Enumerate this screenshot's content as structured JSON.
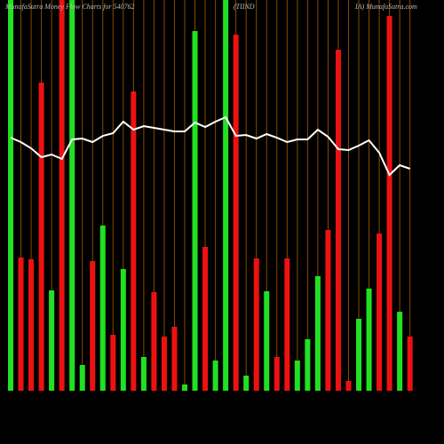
{
  "chart_data": {
    "type": "bar",
    "title_parts": [
      "MunafaSutra  Money Flow  Charts for 540762",
      "(TIIND",
      "IA) MunafaSutra.com"
    ],
    "values": [
      440,
      150,
      148,
      347,
      113,
      440,
      440,
      29,
      146,
      186,
      63,
      137,
      337,
      38,
      111,
      61,
      72,
      7,
      405,
      162,
      34,
      440,
      401,
      17,
      149,
      112,
      38,
      149,
      34,
      58,
      129,
      181,
      384,
      11,
      81,
      115,
      177,
      422,
      89,
      61
    ],
    "colors": [
      "#22e022",
      "#ee1111",
      "#ee1111",
      "#ee1111",
      "#22e022",
      "#ee1111",
      "#22e022",
      "#22e022",
      "#ee1111",
      "#22e022",
      "#ee1111",
      "#22e022",
      "#ee1111",
      "#22e022",
      "#ee1111",
      "#ee1111",
      "#ee1111",
      "#22e022",
      "#22e022",
      "#ee1111",
      "#22e022",
      "#22e022",
      "#ee1111",
      "#22e022",
      "#ee1111",
      "#22e022",
      "#ee1111",
      "#ee1111",
      "#22e022",
      "#22e022",
      "#22e022",
      "#ee1111",
      "#ee1111",
      "#ee1111",
      "#22e022",
      "#22e022",
      "#ee1111",
      "#ee1111",
      "#22e022",
      "#ee1111"
    ],
    "line": {
      "color": "#ffffff",
      "values": [
        285,
        280,
        273,
        263,
        266,
        261,
        283,
        284,
        280,
        287,
        290,
        303,
        294,
        298,
        296,
        294,
        292,
        292,
        302,
        297,
        303,
        308,
        287,
        288,
        284,
        289,
        285,
        280,
        283,
        283,
        294,
        286,
        272,
        271,
        276,
        282,
        268,
        243,
        254,
        250
      ]
    },
    "ylim": [
      0,
      440
    ],
    "gridline_color": "#8a4a00"
  }
}
